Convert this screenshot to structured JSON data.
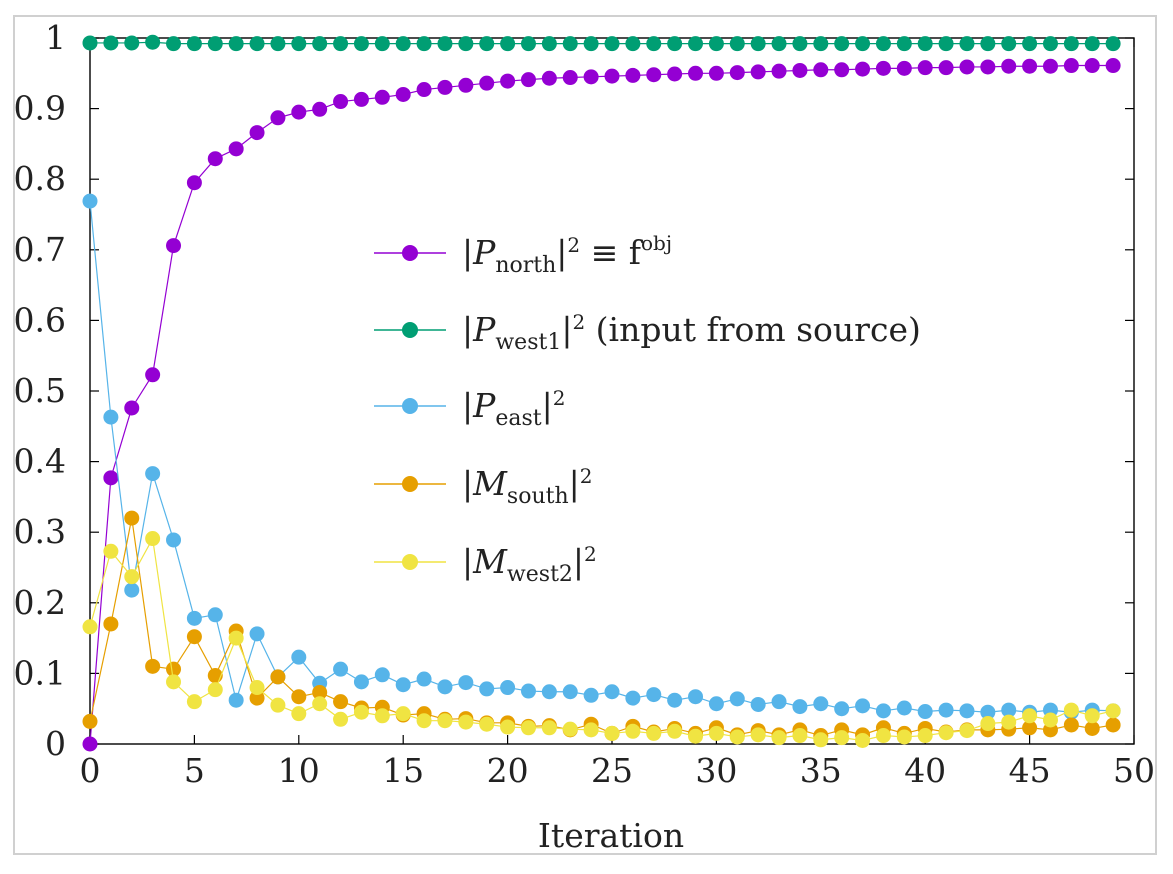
{
  "chart_data": {
    "type": "line",
    "title": "",
    "xlabel": "Iteration",
    "ylabel": "",
    "xlim": [
      0,
      50
    ],
    "ylim": [
      0,
      1
    ],
    "xticks": [
      0,
      5,
      10,
      15,
      20,
      25,
      30,
      35,
      40,
      45,
      50
    ],
    "xtick_labels": [
      "0",
      "5",
      "10",
      "15",
      "20",
      "25",
      "30",
      "35",
      "40",
      "45",
      "50"
    ],
    "yticks": [
      0,
      0.1,
      0.2,
      0.3,
      0.4,
      0.5,
      0.6,
      0.7,
      0.8,
      0.9,
      1
    ],
    "ytick_labels": [
      "0",
      "0.1",
      "0.2",
      "0.3",
      "0.4",
      "0.5",
      "0.6",
      "0.7",
      "0.8",
      "0.9",
      "1"
    ],
    "grid": false,
    "legend_position": "center",
    "x": [
      0,
      1,
      2,
      3,
      4,
      5,
      6,
      7,
      8,
      9,
      10,
      11,
      12,
      13,
      14,
      15,
      16,
      17,
      18,
      19,
      20,
      21,
      22,
      23,
      24,
      25,
      26,
      27,
      28,
      29,
      30,
      31,
      32,
      33,
      34,
      35,
      36,
      37,
      38,
      39,
      40,
      41,
      42,
      43,
      44,
      45,
      46,
      47,
      48,
      49
    ],
    "series": [
      {
        "name": "P_north",
        "legend": {
          "symbol": "P",
          "sub": "north",
          "rest": " ≡ f",
          "sup_rest": "obj"
        },
        "color": "#9400D3",
        "values": [
          0.0,
          0.377,
          0.476,
          0.523,
          0.706,
          0.795,
          0.829,
          0.843,
          0.866,
          0.887,
          0.895,
          0.899,
          0.91,
          0.913,
          0.916,
          0.92,
          0.927,
          0.93,
          0.933,
          0.936,
          0.939,
          0.941,
          0.943,
          0.944,
          0.945,
          0.946,
          0.947,
          0.948,
          0.949,
          0.95,
          0.95,
          0.951,
          0.952,
          0.953,
          0.954,
          0.955,
          0.955,
          0.956,
          0.957,
          0.957,
          0.958,
          0.958,
          0.959,
          0.959,
          0.96,
          0.96,
          0.96,
          0.961,
          0.961,
          0.961
        ]
      },
      {
        "name": "P_west1",
        "legend": {
          "symbol": "P",
          "sub": "west1",
          "rest": " (input from source)",
          "sup_rest": ""
        },
        "color": "#009E73",
        "values": [
          0.993,
          0.993,
          0.993,
          0.994,
          0.992,
          0.992,
          0.992,
          0.992,
          0.992,
          0.992,
          0.992,
          0.992,
          0.992,
          0.992,
          0.992,
          0.992,
          0.992,
          0.992,
          0.992,
          0.992,
          0.992,
          0.992,
          0.992,
          0.992,
          0.992,
          0.992,
          0.992,
          0.992,
          0.992,
          0.992,
          0.992,
          0.992,
          0.992,
          0.992,
          0.992,
          0.992,
          0.992,
          0.992,
          0.992,
          0.992,
          0.992,
          0.992,
          0.992,
          0.992,
          0.992,
          0.992,
          0.992,
          0.992,
          0.992,
          0.992
        ]
      },
      {
        "name": "P_east",
        "legend": {
          "symbol": "P",
          "sub": "east",
          "rest": "",
          "sup_rest": ""
        },
        "color": "#56B4E9",
        "values": [
          0.769,
          0.463,
          0.218,
          0.383,
          0.289,
          0.178,
          0.183,
          0.062,
          0.156,
          0.095,
          0.123,
          0.086,
          0.106,
          0.088,
          0.098,
          0.084,
          0.092,
          0.081,
          0.087,
          0.078,
          0.08,
          0.075,
          0.074,
          0.074,
          0.069,
          0.074,
          0.065,
          0.07,
          0.062,
          0.067,
          0.057,
          0.064,
          0.056,
          0.06,
          0.053,
          0.057,
          0.05,
          0.054,
          0.047,
          0.051,
          0.046,
          0.048,
          0.047,
          0.045,
          0.048,
          0.045,
          0.048,
          0.045,
          0.048,
          0.047
        ]
      },
      {
        "name": "M_south",
        "legend": {
          "symbol": "M",
          "sub": "south",
          "rest": "",
          "sup_rest": ""
        },
        "color": "#E69F00",
        "values": [
          0.032,
          0.17,
          0.32,
          0.11,
          0.106,
          0.152,
          0.097,
          0.16,
          0.065,
          0.095,
          0.067,
          0.073,
          0.06,
          0.051,
          0.052,
          0.041,
          0.043,
          0.035,
          0.036,
          0.03,
          0.03,
          0.025,
          0.026,
          0.02,
          0.028,
          0.015,
          0.025,
          0.017,
          0.022,
          0.015,
          0.023,
          0.013,
          0.019,
          0.013,
          0.02,
          0.012,
          0.02,
          0.013,
          0.023,
          0.015,
          0.022,
          0.017,
          0.02,
          0.02,
          0.021,
          0.023,
          0.02,
          0.027,
          0.022,
          0.027
        ]
      },
      {
        "name": "M_west2",
        "legend": {
          "symbol": "M",
          "sub": "west2",
          "rest": "",
          "sup_rest": ""
        },
        "color": "#F0E442",
        "values": [
          0.166,
          0.273,
          0.237,
          0.291,
          0.088,
          0.06,
          0.077,
          0.15,
          0.08,
          0.055,
          0.043,
          0.057,
          0.035,
          0.045,
          0.04,
          0.043,
          0.033,
          0.033,
          0.031,
          0.028,
          0.024,
          0.023,
          0.023,
          0.021,
          0.02,
          0.015,
          0.018,
          0.015,
          0.018,
          0.011,
          0.015,
          0.01,
          0.013,
          0.009,
          0.012,
          0.006,
          0.009,
          0.005,
          0.012,
          0.01,
          0.012,
          0.016,
          0.019,
          0.029,
          0.031,
          0.04,
          0.034,
          0.048,
          0.04,
          0.047
        ]
      }
    ]
  }
}
